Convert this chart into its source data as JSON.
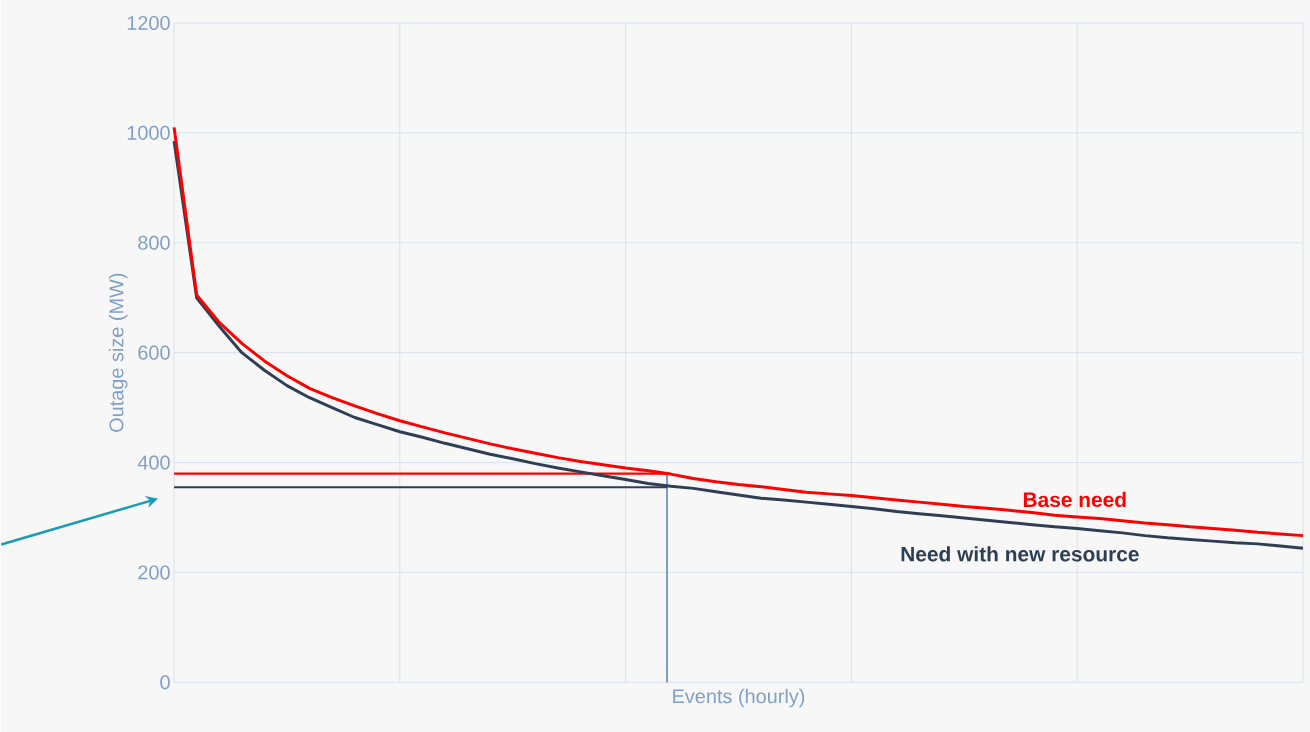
{
  "chart_data": {
    "type": "line",
    "xlabel": "Events (hourly)",
    "ylabel": "Outage size (MW)",
    "categories": [
      null,
      null,
      null,
      null,
      null,
      null,
      null,
      null,
      null,
      null,
      null,
      null,
      null,
      null,
      null,
      null,
      null,
      null,
      null,
      null,
      null,
      null,
      null,
      null,
      null,
      null,
      null,
      null,
      null,
      null,
      null,
      null,
      null,
      null,
      null,
      null,
      null,
      null,
      null,
      null,
      null,
      null,
      null,
      null,
      null,
      null,
      null,
      null,
      null,
      null,
      null
    ],
    "ylim": [
      0,
      1200
    ],
    "yticks": [
      0,
      200,
      400,
      600,
      800,
      1000,
      1200
    ],
    "grid": true,
    "series": [
      {
        "name": "Base need",
        "color": "#ff0000",
        "values": [
          1010,
          705,
          655,
          617,
          585,
          558,
          535,
          518,
          503,
          489,
          476,
          465,
          454,
          444,
          434,
          425,
          417,
          409,
          402,
          396,
          390,
          385,
          379,
          371,
          365,
          360,
          356,
          351,
          346,
          343,
          340,
          336,
          332,
          328,
          324,
          320,
          317,
          313,
          309,
          304,
          301,
          298,
          294,
          290,
          287,
          283,
          280,
          277,
          273,
          270,
          267
        ]
      },
      {
        "name": "Need with new resource",
        "color": "#2e3f55",
        "values": [
          985,
          700,
          648,
          600,
          568,
          540,
          518,
          500,
          482,
          469,
          456,
          446,
          435,
          425,
          415,
          407,
          398,
          390,
          383,
          376,
          369,
          362,
          357,
          353,
          347,
          341,
          335,
          332,
          328,
          324,
          320,
          316,
          311,
          307,
          303,
          299,
          295,
          291,
          287,
          283,
          280,
          276,
          272,
          267,
          263,
          260,
          257,
          254,
          252,
          248,
          244
        ]
      }
    ],
    "ref_lines": [
      {
        "axis": "y",
        "value": 380,
        "color": "#ff0000"
      },
      {
        "axis": "y",
        "value": 355,
        "color": "#2e3f55"
      }
    ]
  }
}
